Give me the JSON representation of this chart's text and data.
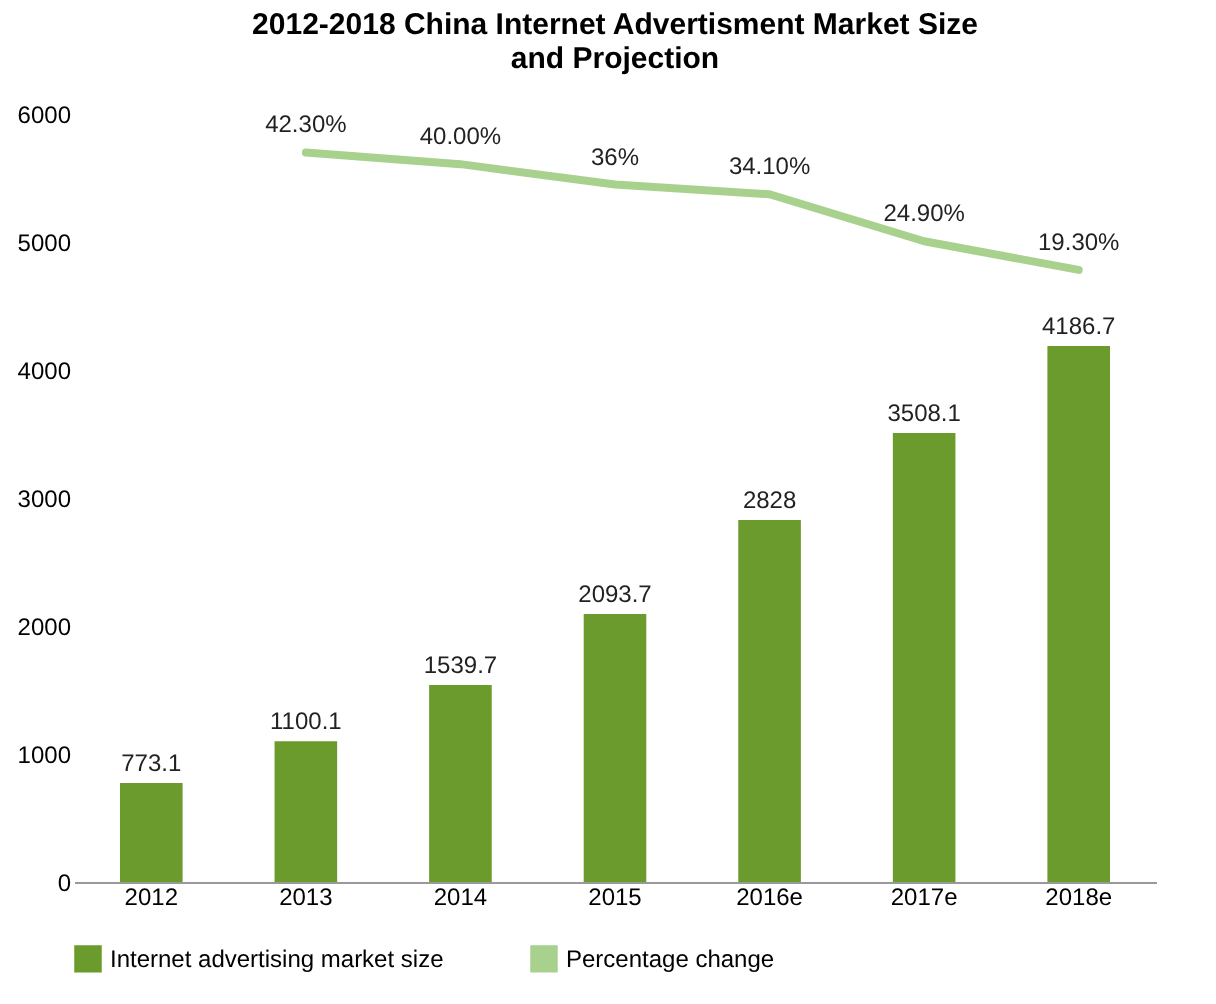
{
  "chart_data": {
    "type": "bar",
    "title": "2012-2018 China Internet Advertisment Market Size and Projection",
    "categories": [
      "2012",
      "2013",
      "2014",
      "2015",
      "2016e",
      "2017e",
      "2018e"
    ],
    "series": [
      {
        "name": "Internet advertising market size",
        "color": "#6b9b2c",
        "values": [
          773.1,
          1100.1,
          1539.7,
          2093.7,
          2828,
          3508.1,
          4186.7
        ]
      },
      {
        "name": "Percentage change",
        "type": "line",
        "axis": "y2",
        "color": "#a9d18e",
        "values": [
          null,
          42.3,
          40,
          36,
          34.1,
          24.9,
          19.3
        ],
        "value_labels": [
          null,
          "42.30%",
          "40.00%",
          "36%",
          "34.10%",
          "24.90%",
          "19.30%"
        ]
      }
    ],
    "ylim": [
      0,
      6000
    ],
    "yticks": [
      0,
      1000,
      2000,
      3000,
      4000,
      5000,
      6000
    ],
    "data_labels": true,
    "legend": "bottom",
    "marker": "none",
    "line_style": "solid"
  }
}
